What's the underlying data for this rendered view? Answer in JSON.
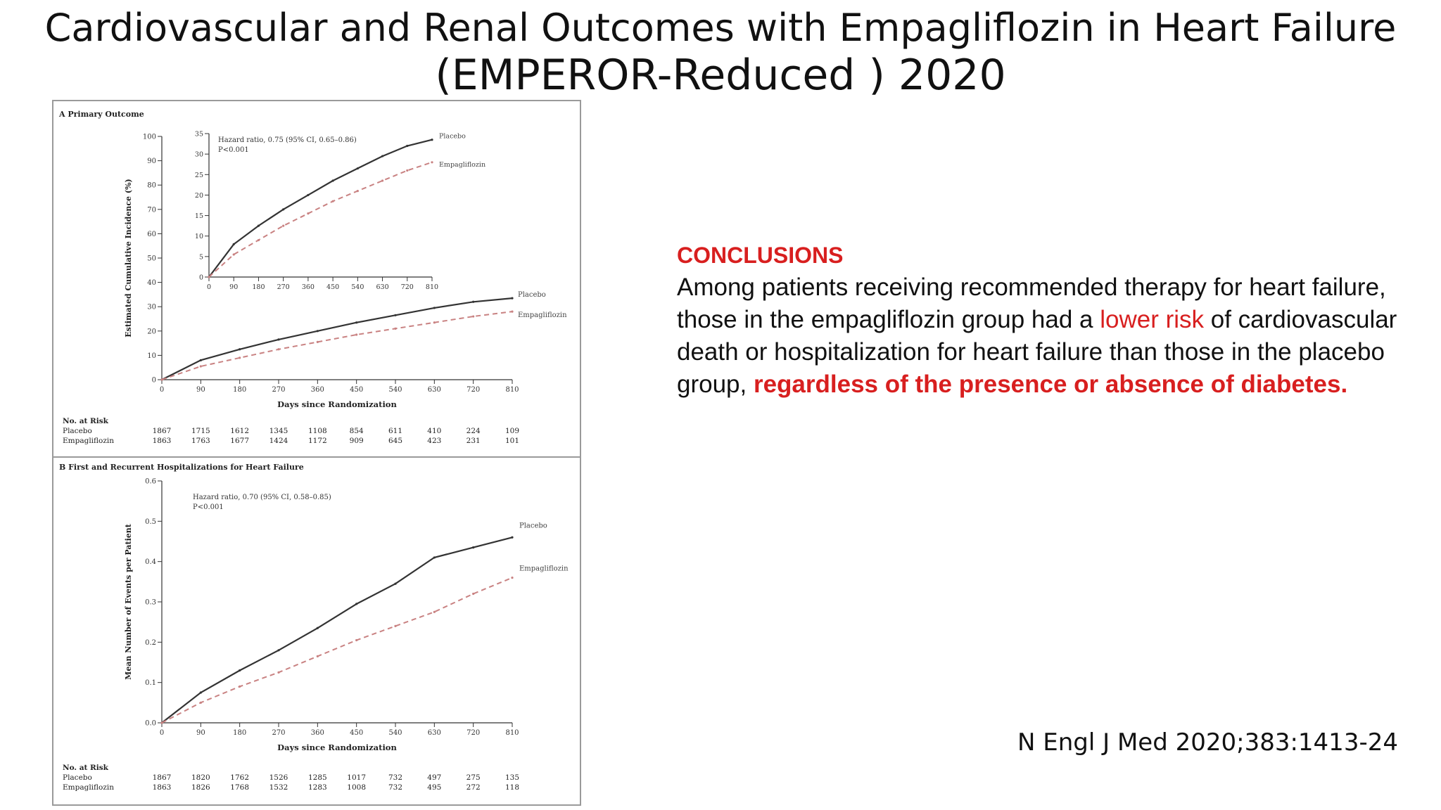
{
  "slide": {
    "title_line1": "Cardiovascular and Renal Outcomes with Empagliflozin in Heart Failure",
    "title_line2": "(EMPEROR-Reduced ) 2020",
    "conclusions_heading": "CONCLUSIONS",
    "conclusions_part1": "Among patients receiving recommended therapy for heart failure, those in the empagliflozin group had a ",
    "conclusions_highlight1": "lower risk",
    "conclusions_part2": " of cardiovascular death or hospitalization for heart failure than those in the placebo group, ",
    "conclusions_highlight2": "regardless of the presence or absence of diabetes.",
    "citation": "N Engl J Med 2020;383:1413-24"
  },
  "colors": {
    "accent_red": "#d81f1f",
    "placebo_line": "#333333",
    "empagliflozin_line": "#c98282"
  },
  "chart_data": [
    {
      "type": "line",
      "panel_label": "A Primary Outcome",
      "xlabel": "Days since Randomization",
      "ylabel": "Estimated Cumulative Incidence (%)",
      "xlim": [
        0,
        810
      ],
      "ylim": [
        0,
        100
      ],
      "x_ticks": [
        0,
        90,
        180,
        270,
        360,
        450,
        540,
        630,
        720,
        810
      ],
      "y_ticks": [
        0,
        10,
        20,
        30,
        40,
        50,
        60,
        70,
        80,
        90,
        100
      ],
      "series": [
        {
          "name": "Placebo",
          "style": "solid",
          "x": [
            0,
            90,
            180,
            270,
            360,
            450,
            540,
            630,
            720,
            810
          ],
          "y": [
            0,
            8,
            12.5,
            16.5,
            20,
            23.5,
            26.5,
            29.5,
            32,
            33.5
          ]
        },
        {
          "name": "Empagliflozin",
          "style": "dashed",
          "x": [
            0,
            90,
            180,
            270,
            360,
            450,
            540,
            630,
            720,
            810
          ],
          "y": [
            0,
            5.5,
            9,
            12.5,
            15.5,
            18.5,
            21,
            23.5,
            26,
            28
          ]
        }
      ],
      "inset": {
        "xlim": [
          0,
          810
        ],
        "ylim": [
          0,
          35
        ],
        "x_ticks": [
          0,
          90,
          180,
          270,
          360,
          450,
          540,
          630,
          720,
          810
        ],
        "y_ticks": [
          0,
          5,
          10,
          15,
          20,
          25,
          30,
          35
        ],
        "annotation_line1": "Hazard ratio, 0.75 (95% CI, 0.65–0.86)",
        "annotation_line2": "P<0.001"
      },
      "at_risk": {
        "heading": "No. at Risk",
        "rows": [
          {
            "label": "Placebo",
            "values": [
              "1867",
              "1715",
              "1612",
              "1345",
              "1108",
              "854",
              "611",
              "410",
              "224",
              "109"
            ]
          },
          {
            "label": "Empagliflozin",
            "values": [
              "1863",
              "1763",
              "1677",
              "1424",
              "1172",
              "909",
              "645",
              "423",
              "231",
              "101"
            ]
          }
        ]
      }
    },
    {
      "type": "line",
      "panel_label": "B First and Recurrent Hospitalizations for Heart Failure",
      "xlabel": "Days since Randomization",
      "ylabel": "Mean Number of Events per Patient",
      "xlim": [
        0,
        810
      ],
      "ylim": [
        0,
        0.6
      ],
      "x_ticks": [
        0,
        90,
        180,
        270,
        360,
        450,
        540,
        630,
        720,
        810
      ],
      "y_ticks": [
        "0.0",
        "0.1",
        "0.2",
        "0.3",
        "0.4",
        "0.5",
        "0.6"
      ],
      "annotation_line1": "Hazard ratio, 0.70 (95% CI, 0.58–0.85)",
      "annotation_line2": "P<0.001",
      "series": [
        {
          "name": "Placebo",
          "style": "solid",
          "x": [
            0,
            90,
            180,
            270,
            360,
            450,
            540,
            630,
            720,
            810
          ],
          "y": [
            0,
            0.075,
            0.13,
            0.18,
            0.235,
            0.295,
            0.345,
            0.41,
            0.435,
            0.46
          ]
        },
        {
          "name": "Empagliflozin",
          "style": "dashed",
          "x": [
            0,
            90,
            180,
            270,
            360,
            450,
            540,
            630,
            720,
            810
          ],
          "y": [
            0,
            0.05,
            0.09,
            0.125,
            0.165,
            0.205,
            0.24,
            0.275,
            0.32,
            0.36
          ]
        }
      ],
      "at_risk": {
        "heading": "No. at Risk",
        "rows": [
          {
            "label": "Placebo",
            "values": [
              "1867",
              "1820",
              "1762",
              "1526",
              "1285",
              "1017",
              "732",
              "497",
              "275",
              "135"
            ]
          },
          {
            "label": "Empagliflozin",
            "values": [
              "1863",
              "1826",
              "1768",
              "1532",
              "1283",
              "1008",
              "732",
              "495",
              "272",
              "118"
            ]
          }
        ]
      }
    }
  ]
}
